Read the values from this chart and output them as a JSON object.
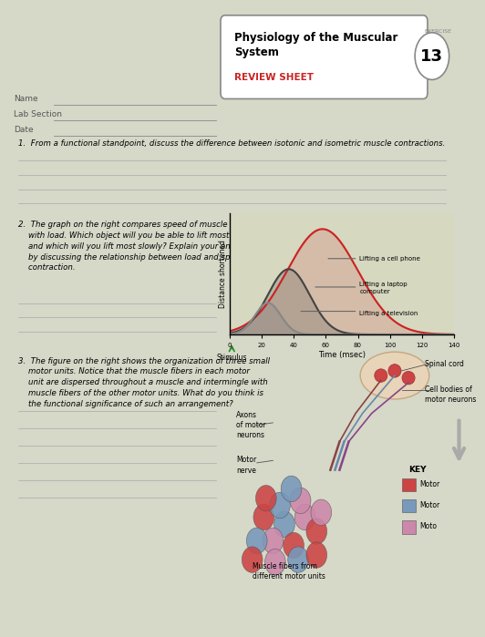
{
  "title": "Physiology of the Muscular\nSystem",
  "subtitle": "REVIEW SHEET",
  "exercise_num": "13",
  "bg_color": "#d6d8c8",
  "paper_color": "#e8e8dc",
  "question1_text": "1.  From a functional standpoint, discuss the difference between isotonic and isometric muscle contractions.",
  "question2_text": "2.  The graph on the right compares speed of muscle contraction\n    with load. Which object will you be able to lift most quickly\n    and which will you lift most slowly? Explain your answer\n    by discussing the relationship between load and speed of\n    contraction.",
  "question3_text": "3.  The figure on the right shows the organization of three small\n    motor units. Notice that the muscle fibers in each motor\n    unit are dispersed throughout a muscle and intermingle with\n    muscle fibers of the other motor units. What do you think is\n    the functional significance of such an arrangement?",
  "graph": {
    "xlabel": "Time (msec)",
    "ylabel": "Distance shortened",
    "xticks": [
      0,
      20,
      40,
      60,
      80,
      100,
      120,
      140
    ],
    "stimulus_label": "Stimulus",
    "legend": [
      {
        "label": "Lifting a cell phone",
        "color": "#cc2222"
      },
      {
        "label": "Lifting a laptop\ncomputer",
        "color": "#444444"
      },
      {
        "label": "Lifting a television",
        "color": "#888888"
      }
    ],
    "bg_color": "#d6d8c0"
  },
  "diagram_labels": {
    "spinal_cord": "Spinal cord",
    "cell_bodies": "Cell bodies of\nmotor neurons",
    "axons": "Axons\nof motor\nneurons",
    "motor_nerve": "Motor\nnerve",
    "muscle_fibers": "Muscle fibers from\ndifferent motor units",
    "key_title": "KEY",
    "key_items": [
      "Motor",
      "Motor",
      "Moto"
    ]
  },
  "key_colors": [
    "#cc4444",
    "#7799bb",
    "#cc88aa"
  ]
}
